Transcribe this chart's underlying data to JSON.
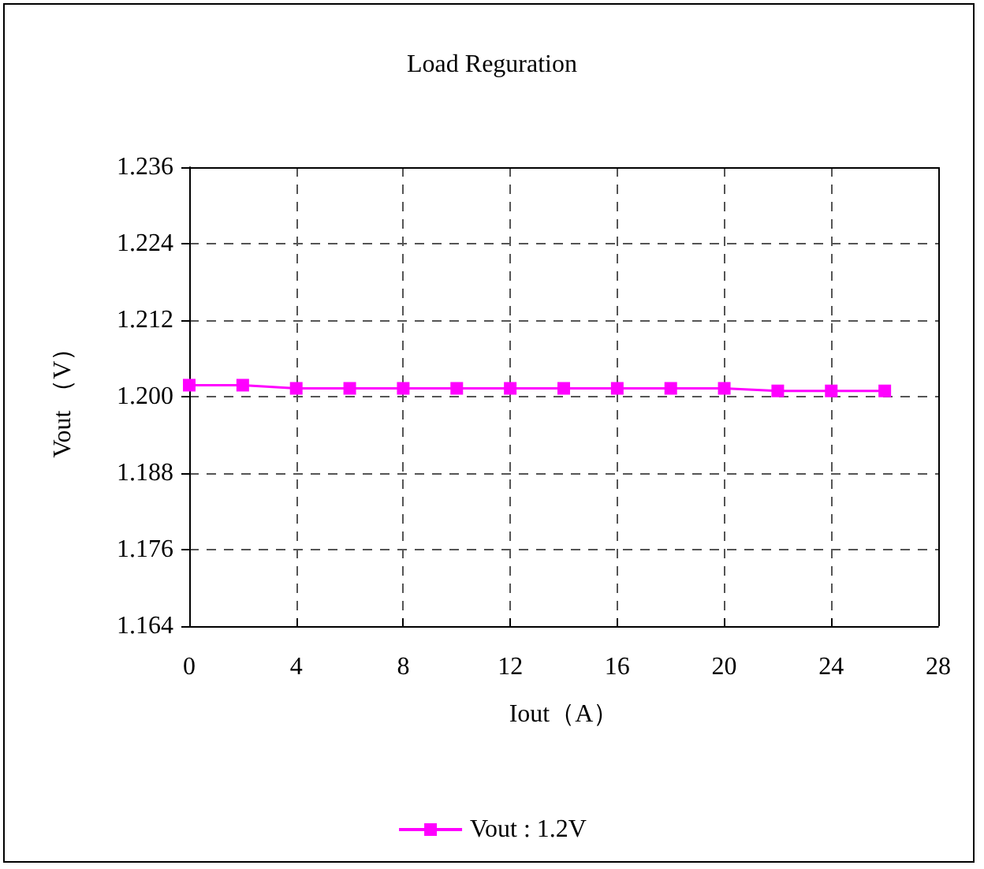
{
  "chart_data": {
    "type": "line",
    "title": "Load Reguration",
    "xlabel": "Iout（A）",
    "ylabel": "Vout （V）",
    "x": [
      0,
      2,
      4,
      6,
      8,
      10,
      12,
      14,
      16,
      18,
      20,
      22,
      24,
      26
    ],
    "series": [
      {
        "name": "Vout : 1.2V",
        "color": "#ff00ff",
        "values": [
          1.2018,
          1.2018,
          1.2013,
          1.2013,
          1.2013,
          1.2013,
          1.2013,
          1.2013,
          1.2013,
          1.2013,
          1.2013,
          1.2009,
          1.2009,
          1.2009
        ]
      }
    ],
    "xlim": [
      0,
      28
    ],
    "xticks": [
      0,
      4,
      8,
      12,
      16,
      20,
      24,
      28
    ],
    "ylim": [
      1.164,
      1.236
    ],
    "yticks": [
      1.164,
      1.176,
      1.188,
      {
        "value": 1.2,
        "label": "1.200"
      },
      1.212,
      1.224,
      1.236
    ],
    "grid": true,
    "legend": "bottom",
    "marker": "square",
    "line_style": "solid"
  }
}
